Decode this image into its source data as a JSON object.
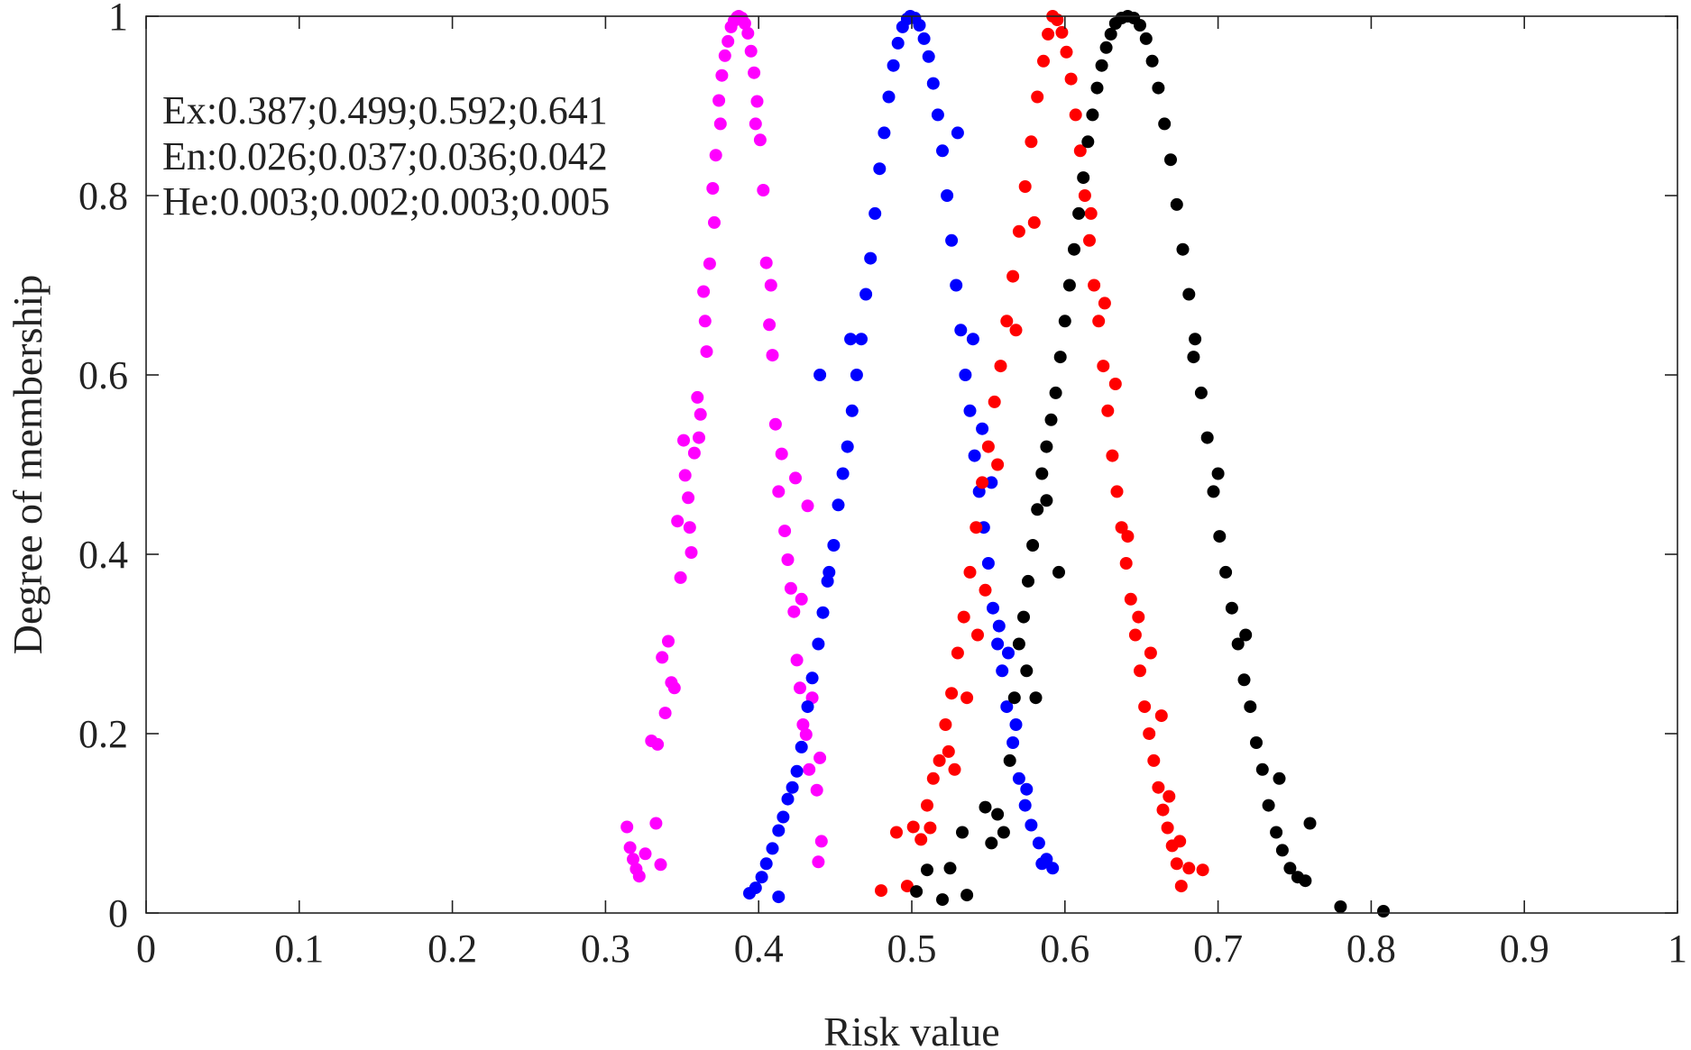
{
  "chart_data": {
    "type": "scatter",
    "xlabel": "Risk value",
    "ylabel": "Degree of membership",
    "xlim": [
      0,
      1
    ],
    "ylim": [
      0,
      1
    ],
    "x_ticks": [
      "0",
      "0.1",
      "0.2",
      "0.3",
      "0.4",
      "0.5",
      "0.6",
      "0.7",
      "0.8",
      "0.9",
      "1"
    ],
    "y_ticks": [
      "0",
      "0.2",
      "0.4",
      "0.6",
      "0.8",
      "1"
    ],
    "grid": false,
    "box": true,
    "annotation_lines": [
      "Ex:0.387;0.499;0.592;0.641",
      "En:0.026;0.037;0.036;0.042",
      "He:0.003;0.002;0.003;0.005"
    ],
    "series": [
      {
        "color": "#ff00ff",
        "points": [
          [
            0.314,
            0.096
          ],
          [
            0.316,
            0.073
          ],
          [
            0.318,
            0.06
          ],
          [
            0.32,
            0.049
          ],
          [
            0.322,
            0.041
          ],
          [
            0.326,
            0.066
          ],
          [
            0.33,
            0.192
          ],
          [
            0.333,
            0.1
          ],
          [
            0.334,
            0.188
          ],
          [
            0.336,
            0.054
          ],
          [
            0.337,
            0.285
          ],
          [
            0.339,
            0.223
          ],
          [
            0.341,
            0.303
          ],
          [
            0.343,
            0.257
          ],
          [
            0.345,
            0.251
          ],
          [
            0.347,
            0.437
          ],
          [
            0.349,
            0.374
          ],
          [
            0.351,
            0.527
          ],
          [
            0.352,
            0.488
          ],
          [
            0.354,
            0.463
          ],
          [
            0.356,
            0.402
          ],
          [
            0.358,
            0.513
          ],
          [
            0.36,
            0.575
          ],
          [
            0.362,
            0.556
          ],
          [
            0.364,
            0.693
          ],
          [
            0.366,
            0.626
          ],
          [
            0.368,
            0.724
          ],
          [
            0.37,
            0.808
          ],
          [
            0.372,
            0.845
          ],
          [
            0.374,
            0.906
          ],
          [
            0.376,
            0.934
          ],
          [
            0.378,
            0.956
          ],
          [
            0.38,
            0.972
          ],
          [
            0.382,
            0.988
          ],
          [
            0.384,
            0.995
          ],
          [
            0.386,
            0.999
          ],
          [
            0.387,
            1.0
          ],
          [
            0.389,
            0.998
          ],
          [
            0.391,
            0.992
          ],
          [
            0.393,
            0.981
          ],
          [
            0.395,
            0.961
          ],
          [
            0.397,
            0.937
          ],
          [
            0.399,
            0.905
          ],
          [
            0.401,
            0.862
          ],
          [
            0.403,
            0.806
          ],
          [
            0.405,
            0.725
          ],
          [
            0.407,
            0.656
          ],
          [
            0.409,
            0.622
          ],
          [
            0.411,
            0.545
          ],
          [
            0.413,
            0.47
          ],
          [
            0.415,
            0.512
          ],
          [
            0.417,
            0.426
          ],
          [
            0.419,
            0.394
          ],
          [
            0.421,
            0.362
          ],
          [
            0.423,
            0.336
          ],
          [
            0.425,
            0.282
          ],
          [
            0.427,
            0.251
          ],
          [
            0.429,
            0.21
          ],
          [
            0.431,
            0.199
          ],
          [
            0.433,
            0.16
          ],
          [
            0.435,
            0.24
          ],
          [
            0.438,
            0.137
          ],
          [
            0.44,
            0.173
          ],
          [
            0.441,
            0.08
          ],
          [
            0.439,
            0.057
          ],
          [
            0.432,
            0.454
          ],
          [
            0.428,
            0.35
          ],
          [
            0.424,
            0.485
          ],
          [
            0.408,
            0.7
          ],
          [
            0.398,
            0.88
          ],
          [
            0.375,
            0.88
          ],
          [
            0.371,
            0.77
          ],
          [
            0.365,
            0.66
          ],
          [
            0.361,
            0.53
          ],
          [
            0.355,
            0.43
          ]
        ]
      },
      {
        "color": "#0000ff",
        "points": [
          [
            0.394,
            0.022
          ],
          [
            0.398,
            0.028
          ],
          [
            0.402,
            0.04
          ],
          [
            0.405,
            0.055
          ],
          [
            0.409,
            0.072
          ],
          [
            0.413,
            0.092
          ],
          [
            0.416,
            0.107
          ],
          [
            0.419,
            0.127
          ],
          [
            0.422,
            0.14
          ],
          [
            0.425,
            0.158
          ],
          [
            0.428,
            0.185
          ],
          [
            0.432,
            0.23
          ],
          [
            0.435,
            0.262
          ],
          [
            0.439,
            0.3
          ],
          [
            0.442,
            0.335
          ],
          [
            0.445,
            0.37
          ],
          [
            0.449,
            0.41
          ],
          [
            0.452,
            0.455
          ],
          [
            0.455,
            0.49
          ],
          [
            0.458,
            0.52
          ],
          [
            0.461,
            0.56
          ],
          [
            0.464,
            0.6
          ],
          [
            0.467,
            0.64
          ],
          [
            0.47,
            0.69
          ],
          [
            0.473,
            0.73
          ],
          [
            0.476,
            0.78
          ],
          [
            0.479,
            0.83
          ],
          [
            0.482,
            0.87
          ],
          [
            0.485,
            0.91
          ],
          [
            0.488,
            0.945
          ],
          [
            0.491,
            0.97
          ],
          [
            0.494,
            0.988
          ],
          [
            0.497,
            0.997
          ],
          [
            0.499,
            1.0
          ],
          [
            0.502,
            0.998
          ],
          [
            0.505,
            0.99
          ],
          [
            0.508,
            0.975
          ],
          [
            0.511,
            0.955
          ],
          [
            0.514,
            0.925
          ],
          [
            0.517,
            0.89
          ],
          [
            0.52,
            0.85
          ],
          [
            0.523,
            0.8
          ],
          [
            0.526,
            0.75
          ],
          [
            0.529,
            0.7
          ],
          [
            0.532,
            0.65
          ],
          [
            0.535,
            0.6
          ],
          [
            0.538,
            0.56
          ],
          [
            0.541,
            0.51
          ],
          [
            0.544,
            0.47
          ],
          [
            0.547,
            0.43
          ],
          [
            0.55,
            0.39
          ],
          [
            0.553,
            0.34
          ],
          [
            0.556,
            0.3
          ],
          [
            0.559,
            0.27
          ],
          [
            0.562,
            0.23
          ],
          [
            0.566,
            0.19
          ],
          [
            0.57,
            0.15
          ],
          [
            0.574,
            0.12
          ],
          [
            0.578,
            0.098
          ],
          [
            0.583,
            0.078
          ],
          [
            0.588,
            0.06
          ],
          [
            0.592,
            0.05
          ],
          [
            0.44,
            0.6
          ],
          [
            0.446,
            0.38
          ],
          [
            0.46,
            0.64
          ],
          [
            0.53,
            0.87
          ],
          [
            0.54,
            0.64
          ],
          [
            0.546,
            0.54
          ],
          [
            0.552,
            0.48
          ],
          [
            0.557,
            0.32
          ],
          [
            0.563,
            0.29
          ],
          [
            0.568,
            0.21
          ],
          [
            0.575,
            0.138
          ],
          [
            0.585,
            0.055
          ],
          [
            0.413,
            0.018
          ]
        ]
      },
      {
        "color": "#ff0000",
        "points": [
          [
            0.48,
            0.025
          ],
          [
            0.49,
            0.09
          ],
          [
            0.497,
            0.03
          ],
          [
            0.501,
            0.096
          ],
          [
            0.506,
            0.082
          ],
          [
            0.51,
            0.12
          ],
          [
            0.514,
            0.15
          ],
          [
            0.518,
            0.17
          ],
          [
            0.522,
            0.21
          ],
          [
            0.526,
            0.245
          ],
          [
            0.53,
            0.29
          ],
          [
            0.534,
            0.33
          ],
          [
            0.538,
            0.38
          ],
          [
            0.542,
            0.43
          ],
          [
            0.546,
            0.48
          ],
          [
            0.55,
            0.52
          ],
          [
            0.554,
            0.57
          ],
          [
            0.558,
            0.61
          ],
          [
            0.562,
            0.66
          ],
          [
            0.566,
            0.71
          ],
          [
            0.57,
            0.76
          ],
          [
            0.574,
            0.81
          ],
          [
            0.578,
            0.86
          ],
          [
            0.582,
            0.91
          ],
          [
            0.586,
            0.95
          ],
          [
            0.589,
            0.98
          ],
          [
            0.592,
            1.0
          ],
          [
            0.595,
            0.996
          ],
          [
            0.598,
            0.982
          ],
          [
            0.601,
            0.96
          ],
          [
            0.604,
            0.93
          ],
          [
            0.607,
            0.89
          ],
          [
            0.61,
            0.85
          ],
          [
            0.613,
            0.8
          ],
          [
            0.616,
            0.75
          ],
          [
            0.619,
            0.7
          ],
          [
            0.622,
            0.66
          ],
          [
            0.625,
            0.61
          ],
          [
            0.628,
            0.56
          ],
          [
            0.631,
            0.51
          ],
          [
            0.634,
            0.47
          ],
          [
            0.637,
            0.43
          ],
          [
            0.64,
            0.39
          ],
          [
            0.643,
            0.35
          ],
          [
            0.646,
            0.31
          ],
          [
            0.649,
            0.27
          ],
          [
            0.652,
            0.23
          ],
          [
            0.655,
            0.2
          ],
          [
            0.658,
            0.17
          ],
          [
            0.661,
            0.14
          ],
          [
            0.664,
            0.115
          ],
          [
            0.667,
            0.095
          ],
          [
            0.67,
            0.075
          ],
          [
            0.673,
            0.055
          ],
          [
            0.676,
            0.03
          ],
          [
            0.681,
            0.05
          ],
          [
            0.69,
            0.048
          ],
          [
            0.512,
            0.095
          ],
          [
            0.524,
            0.18
          ],
          [
            0.536,
            0.24
          ],
          [
            0.548,
            0.36
          ],
          [
            0.556,
            0.5
          ],
          [
            0.568,
            0.65
          ],
          [
            0.58,
            0.77
          ],
          [
            0.617,
            0.78
          ],
          [
            0.626,
            0.68
          ],
          [
            0.633,
            0.59
          ],
          [
            0.641,
            0.42
          ],
          [
            0.648,
            0.33
          ],
          [
            0.656,
            0.29
          ],
          [
            0.663,
            0.22
          ],
          [
            0.668,
            0.13
          ],
          [
            0.675,
            0.08
          ],
          [
            0.543,
            0.31
          ],
          [
            0.528,
            0.16
          ]
        ]
      },
      {
        "color": "#000000",
        "points": [
          [
            0.503,
            0.024
          ],
          [
            0.51,
            0.048
          ],
          [
            0.52,
            0.015
          ],
          [
            0.525,
            0.05
          ],
          [
            0.533,
            0.09
          ],
          [
            0.536,
            0.02
          ],
          [
            0.548,
            0.118
          ],
          [
            0.552,
            0.078
          ],
          [
            0.556,
            0.11
          ],
          [
            0.56,
            0.09
          ],
          [
            0.564,
            0.17
          ],
          [
            0.567,
            0.24
          ],
          [
            0.57,
            0.3
          ],
          [
            0.573,
            0.33
          ],
          [
            0.576,
            0.37
          ],
          [
            0.579,
            0.41
          ],
          [
            0.582,
            0.45
          ],
          [
            0.585,
            0.49
          ],
          [
            0.588,
            0.52
          ],
          [
            0.591,
            0.55
          ],
          [
            0.594,
            0.58
          ],
          [
            0.597,
            0.62
          ],
          [
            0.6,
            0.66
          ],
          [
            0.603,
            0.7
          ],
          [
            0.606,
            0.74
          ],
          [
            0.609,
            0.78
          ],
          [
            0.612,
            0.82
          ],
          [
            0.615,
            0.86
          ],
          [
            0.618,
            0.89
          ],
          [
            0.621,
            0.92
          ],
          [
            0.624,
            0.945
          ],
          [
            0.627,
            0.965
          ],
          [
            0.63,
            0.98
          ],
          [
            0.633,
            0.992
          ],
          [
            0.637,
            0.998
          ],
          [
            0.641,
            1.0
          ],
          [
            0.645,
            0.998
          ],
          [
            0.649,
            0.99
          ],
          [
            0.653,
            0.975
          ],
          [
            0.657,
            0.95
          ],
          [
            0.661,
            0.92
          ],
          [
            0.665,
            0.88
          ],
          [
            0.669,
            0.84
          ],
          [
            0.673,
            0.79
          ],
          [
            0.677,
            0.74
          ],
          [
            0.681,
            0.69
          ],
          [
            0.685,
            0.64
          ],
          [
            0.689,
            0.58
          ],
          [
            0.693,
            0.53
          ],
          [
            0.697,
            0.47
          ],
          [
            0.701,
            0.42
          ],
          [
            0.705,
            0.38
          ],
          [
            0.709,
            0.34
          ],
          [
            0.713,
            0.3
          ],
          [
            0.717,
            0.26
          ],
          [
            0.721,
            0.23
          ],
          [
            0.725,
            0.19
          ],
          [
            0.729,
            0.16
          ],
          [
            0.733,
            0.12
          ],
          [
            0.738,
            0.09
          ],
          [
            0.742,
            0.07
          ],
          [
            0.747,
            0.05
          ],
          [
            0.752,
            0.04
          ],
          [
            0.757,
            0.036
          ],
          [
            0.78,
            0.007
          ],
          [
            0.808,
            0.002
          ],
          [
            0.76,
            0.1
          ],
          [
            0.74,
            0.15
          ],
          [
            0.718,
            0.31
          ],
          [
            0.7,
            0.49
          ],
          [
            0.684,
            0.62
          ],
          [
            0.596,
            0.38
          ],
          [
            0.588,
            0.46
          ],
          [
            0.575,
            0.27
          ],
          [
            0.581,
            0.24
          ]
        ]
      }
    ]
  }
}
